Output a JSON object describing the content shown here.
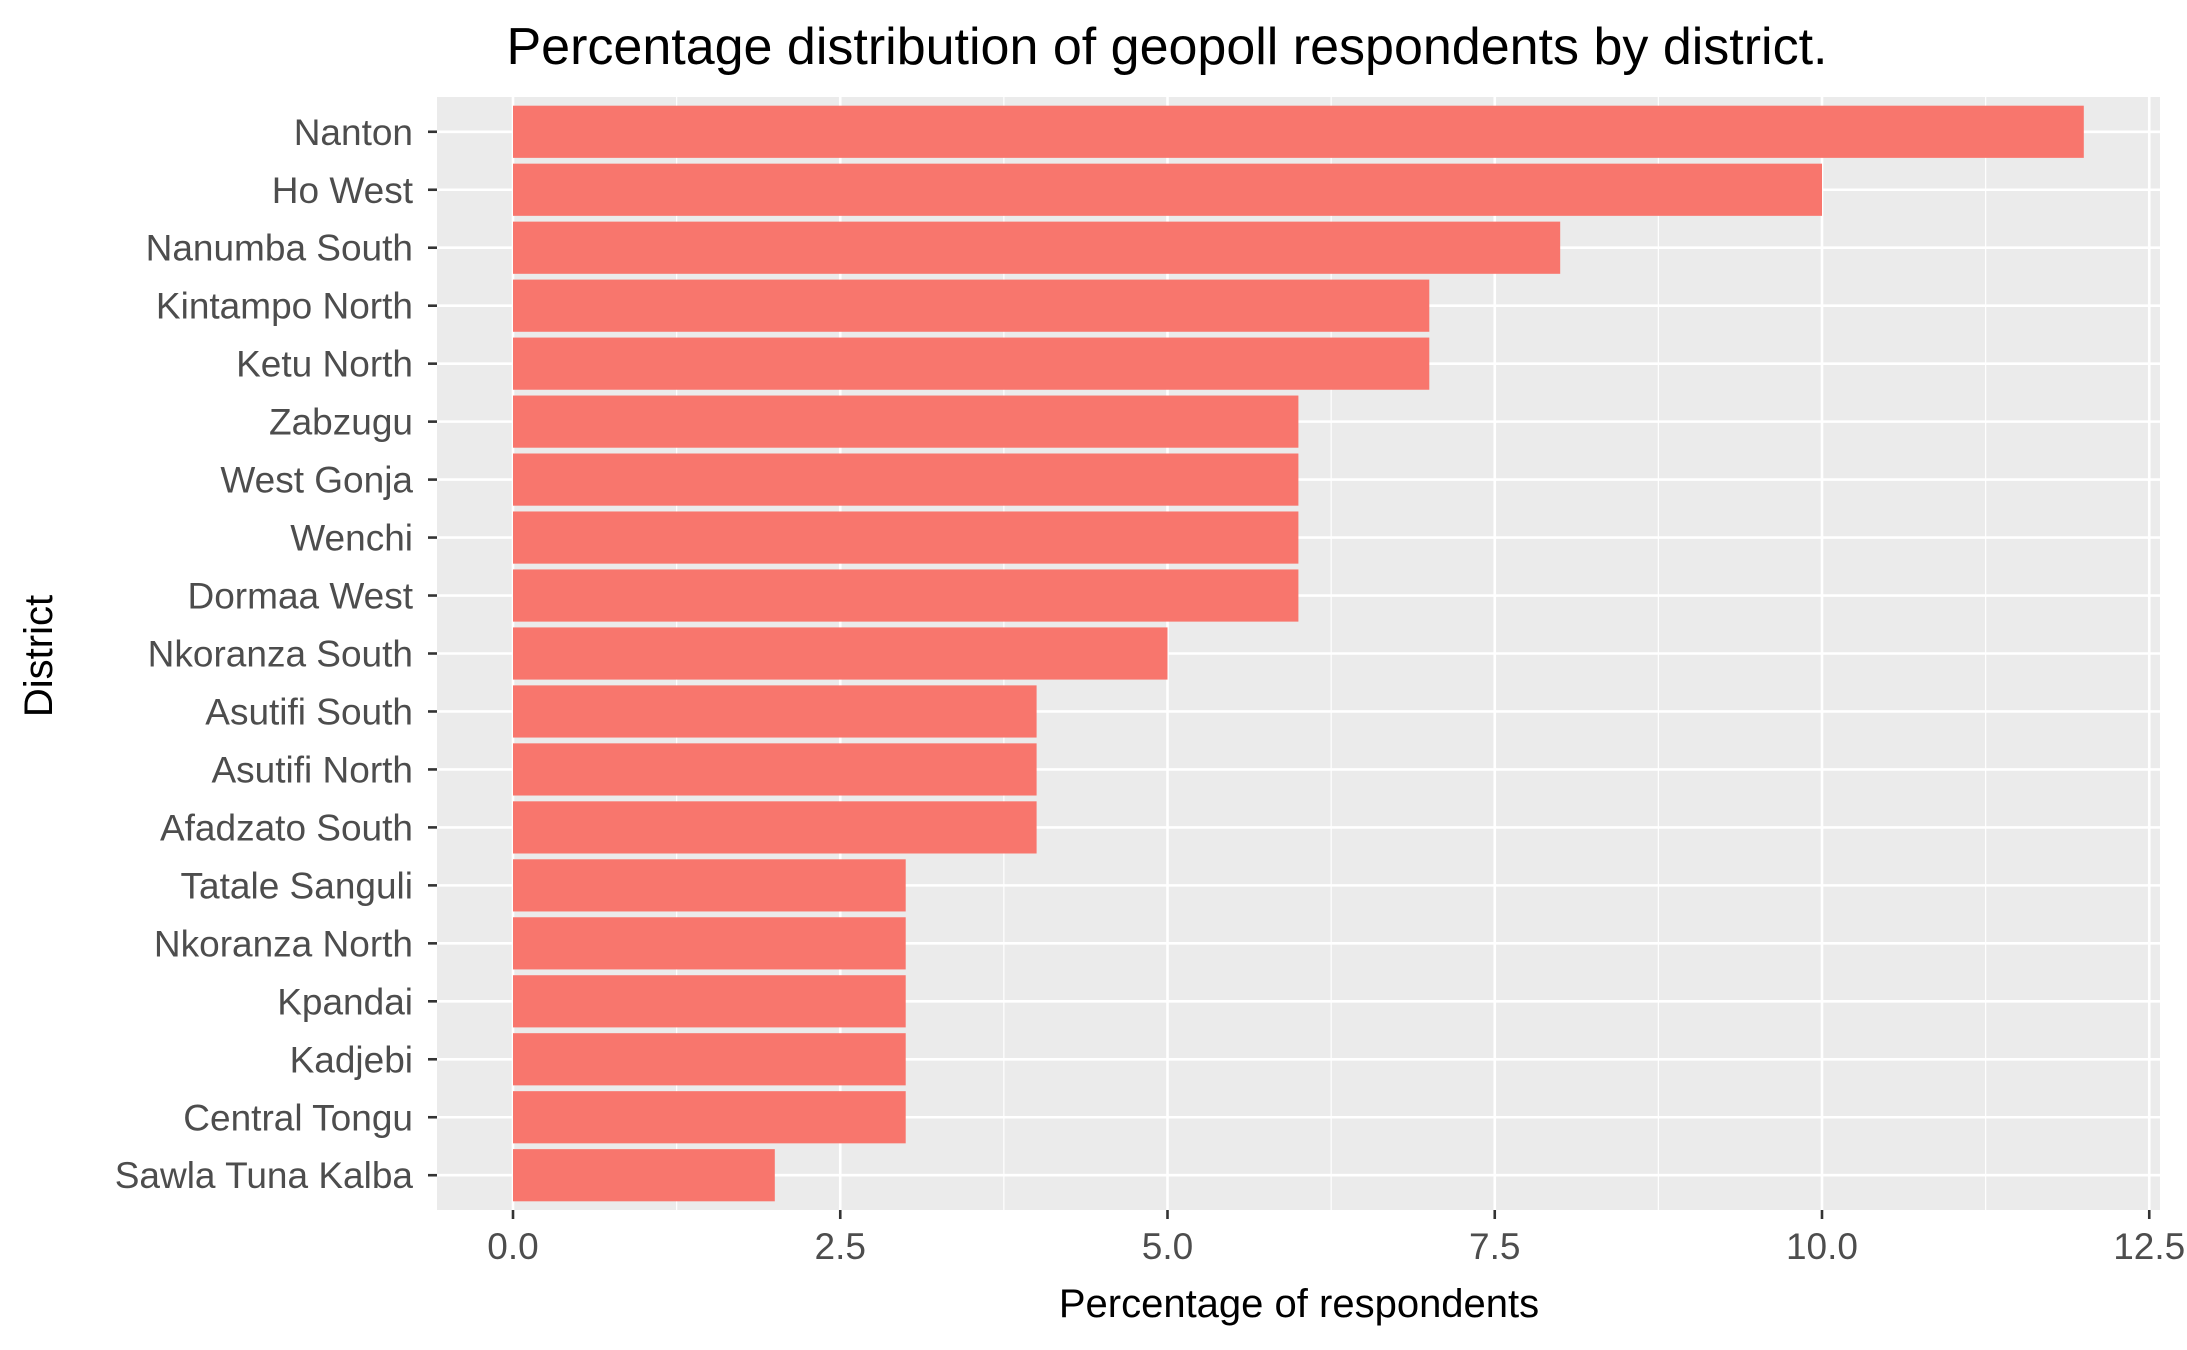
{
  "chart_data": {
    "type": "bar",
    "orientation": "horizontal",
    "title": "Percentage distribution of geopoll respondents by district.",
    "xlabel": "Percentage of respondents",
    "ylabel": "District",
    "categories": [
      "Nanton",
      "Ho West",
      "Nanumba South",
      "Kintampo North",
      "Ketu North",
      "Zabzugu",
      "West Gonja",
      "Wenchi",
      "Dormaa West",
      "Nkoranza South",
      "Asutifi South",
      "Asutifi North",
      "Afadzato South",
      "Tatale Sanguli",
      "Nkoranza North",
      "Kpandai",
      "Kadjebi",
      "Central Tongu",
      "Sawla Tuna Kalba"
    ],
    "values": [
      12,
      10,
      8,
      7,
      7,
      6,
      6,
      6,
      6,
      5,
      4,
      4,
      4,
      3,
      3,
      3,
      3,
      3,
      2
    ],
    "xlim": [
      -0.6,
      12.5
    ],
    "x_ticks": [
      0,
      2.5,
      5,
      7.5,
      10,
      12.5
    ],
    "x_tick_labels": [
      "0.0",
      "2.5",
      "5.0",
      "7.5",
      "10.0",
      "12.5"
    ],
    "grid": true,
    "legend": "none",
    "colors": {
      "bar": "#F8766D",
      "panel_background": "#EBEBEB",
      "grid_major": "#FFFFFF",
      "tick_text": "#4D4D4D",
      "tick_mark": "#333333"
    }
  }
}
